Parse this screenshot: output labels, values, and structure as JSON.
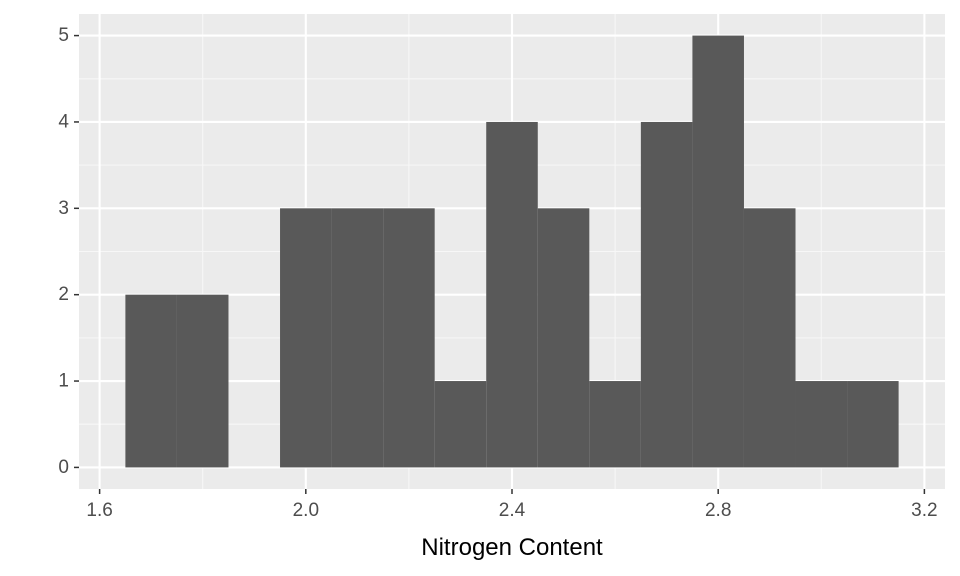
{
  "chart_data": {
    "type": "bar",
    "xlabel": "Nitrogen Content",
    "ylabel": "",
    "title": "",
    "xlim": [
      1.56,
      3.24
    ],
    "ylim": [
      -0.25,
      5.25
    ],
    "x_ticks": [
      1.6,
      2.0,
      2.4,
      2.8,
      3.2
    ],
    "x_tick_labels": [
      "1.6",
      "2.0",
      "2.4",
      "2.8",
      "3.2"
    ],
    "y_ticks": [
      0,
      1,
      2,
      3,
      4,
      5
    ],
    "y_tick_labels": [
      "0",
      "1",
      "2",
      "3",
      "4",
      "5"
    ],
    "bin_width": 0.1,
    "bins": [
      {
        "x0": 1.65,
        "x1": 1.75,
        "count": 2
      },
      {
        "x0": 1.75,
        "x1": 1.85,
        "count": 2
      },
      {
        "x0": 1.85,
        "x1": 1.95,
        "count": 0
      },
      {
        "x0": 1.95,
        "x1": 2.05,
        "count": 3
      },
      {
        "x0": 2.05,
        "x1": 2.15,
        "count": 3
      },
      {
        "x0": 2.15,
        "x1": 2.25,
        "count": 3
      },
      {
        "x0": 2.25,
        "x1": 2.35,
        "count": 1
      },
      {
        "x0": 2.35,
        "x1": 2.45,
        "count": 4
      },
      {
        "x0": 2.45,
        "x1": 2.55,
        "count": 3
      },
      {
        "x0": 2.55,
        "x1": 2.65,
        "count": 1
      },
      {
        "x0": 2.65,
        "x1": 2.75,
        "count": 4
      },
      {
        "x0": 2.75,
        "x1": 2.85,
        "count": 5
      },
      {
        "x0": 2.85,
        "x1": 2.95,
        "count": 3
      },
      {
        "x0": 2.95,
        "x1": 3.05,
        "count": 1
      },
      {
        "x0": 3.05,
        "x1": 3.15,
        "count": 1
      }
    ],
    "grid": true,
    "colors": {
      "panel_background": "#ebebeb",
      "grid_major": "#ffffff",
      "grid_minor": "#f7f7f7",
      "bar_fill": "#595959",
      "tick_mark": "#333333"
    }
  }
}
